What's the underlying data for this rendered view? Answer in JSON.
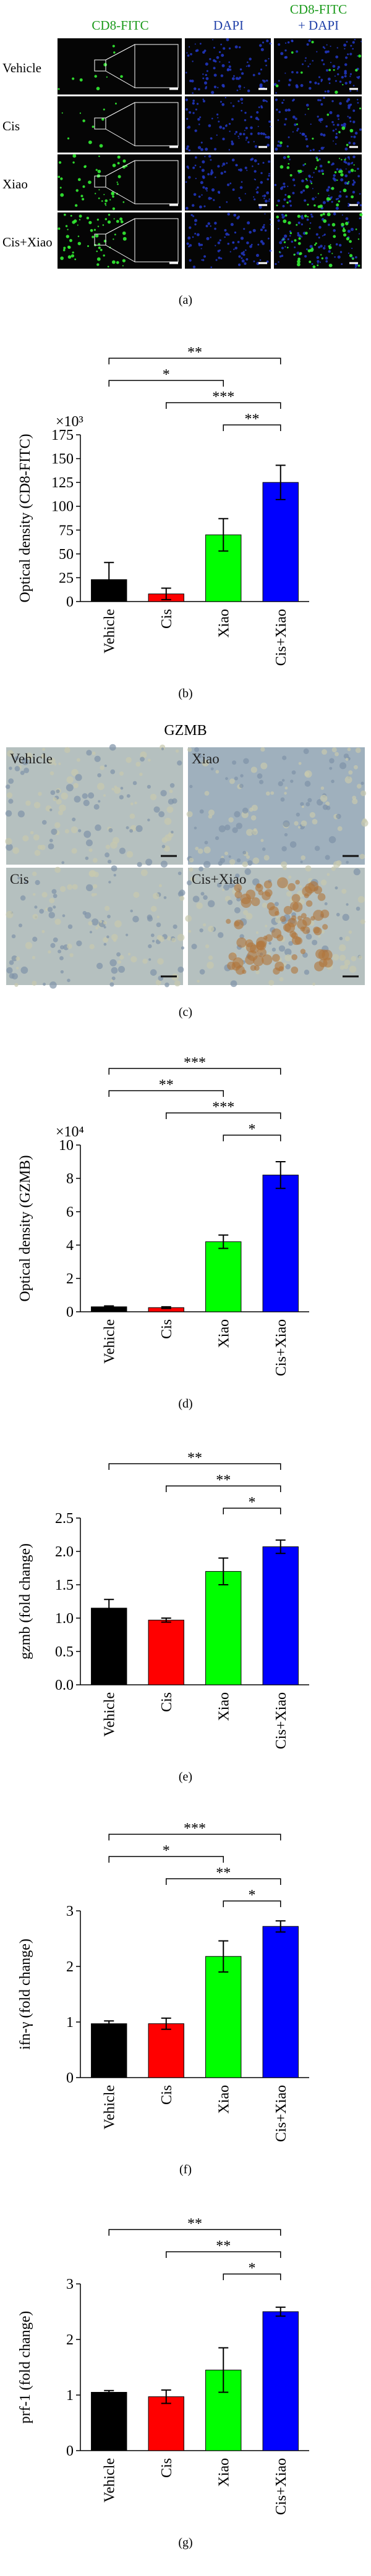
{
  "panel_a": {
    "columns": [
      [
        "CD8-FITC"
      ],
      [
        "DAPI"
      ],
      [
        "CD8-FITC",
        "+ DAPI"
      ]
    ],
    "rows": [
      "Vehicle",
      "Cis",
      "Xiao",
      "Cis+Xiao"
    ],
    "label": "(a)"
  },
  "panel_c": {
    "title": "GZMB",
    "images": [
      "Vehicle",
      "Xiao",
      "Cis",
      "Cis+Xiao"
    ],
    "label": "(c)"
  },
  "chart_data": [
    {
      "type": "bar",
      "panel_label": "(b)",
      "ylabel": "Optical density (CD8-FITC)",
      "y_multiplier": "×10³",
      "categories": [
        "Vehicle",
        "Cis",
        "Xiao",
        "Cis+Xiao"
      ],
      "values": [
        23,
        8,
        70,
        125
      ],
      "errors": [
        18,
        6,
        17,
        18
      ],
      "colors": [
        "#000000",
        "#ff0000",
        "#00ff00",
        "#0000ff"
      ],
      "ylim": [
        0,
        175
      ],
      "yticks": [
        0,
        25,
        50,
        75,
        100,
        125,
        150,
        175
      ],
      "brackets": [
        {
          "from": 2,
          "to": 3,
          "label": "**"
        },
        {
          "from": 1,
          "to": 3,
          "label": "***"
        },
        {
          "from": 0,
          "to": 2,
          "label": "*"
        },
        {
          "from": 0,
          "to": 3,
          "label": "**"
        }
      ]
    },
    {
      "type": "bar",
      "panel_label": "(d)",
      "ylabel": "Optical density (GZMB)",
      "y_multiplier": "×10⁴",
      "categories": [
        "Vehicle",
        "Cis",
        "Xiao",
        "Cis+Xiao"
      ],
      "values": [
        0.3,
        0.25,
        4.2,
        8.2
      ],
      "errors": [
        0.05,
        0.05,
        0.4,
        0.8
      ],
      "colors": [
        "#000000",
        "#ff0000",
        "#00ff00",
        "#0000ff"
      ],
      "ylim": [
        0,
        10
      ],
      "yticks": [
        0,
        2,
        4,
        6,
        8,
        10
      ],
      "brackets": [
        {
          "from": 2,
          "to": 3,
          "label": "*"
        },
        {
          "from": 1,
          "to": 3,
          "label": "***"
        },
        {
          "from": 0,
          "to": 2,
          "label": "**"
        },
        {
          "from": 0,
          "to": 3,
          "label": "***"
        }
      ]
    },
    {
      "type": "bar",
      "panel_label": "(e)",
      "ylabel": "gzmb (fold change)",
      "categories": [
        "Vehicle",
        "Cis",
        "Xiao",
        "Cis+Xiao"
      ],
      "values": [
        1.15,
        0.97,
        1.7,
        2.07
      ],
      "errors": [
        0.13,
        0.03,
        0.2,
        0.1
      ],
      "colors": [
        "#000000",
        "#ff0000",
        "#00ff00",
        "#0000ff"
      ],
      "ylim": [
        0,
        2.5
      ],
      "yticks": [
        {
          "value": 0,
          "label": "0.0"
        },
        {
          "value": 0.5,
          "label": "0.5"
        },
        {
          "value": 1,
          "label": "1.0"
        },
        {
          "value": 1.5,
          "label": "1.5"
        },
        {
          "value": 2,
          "label": "2.0"
        },
        {
          "value": 2.5,
          "label": "2.5"
        }
      ],
      "brackets": [
        {
          "from": 2,
          "to": 3,
          "label": "*"
        },
        {
          "from": 1,
          "to": 3,
          "label": "**"
        },
        {
          "from": 0,
          "to": 3,
          "label": "**"
        }
      ]
    },
    {
      "type": "bar",
      "panel_label": "(f)",
      "ylabel": "ifn-γ (fold change)",
      "categories": [
        "Vehicle",
        "Cis",
        "Xiao",
        "Cis+Xiao"
      ],
      "values": [
        0.97,
        0.97,
        2.18,
        2.72
      ],
      "errors": [
        0.05,
        0.1,
        0.28,
        0.1
      ],
      "colors": [
        "#000000",
        "#ff0000",
        "#00ff00",
        "#0000ff"
      ],
      "ylim": [
        0,
        3
      ],
      "yticks": [
        0,
        1,
        2,
        3
      ],
      "brackets": [
        {
          "from": 2,
          "to": 3,
          "label": "*"
        },
        {
          "from": 1,
          "to": 3,
          "label": "**"
        },
        {
          "from": 0,
          "to": 2,
          "label": "*"
        },
        {
          "from": 0,
          "to": 3,
          "label": "***"
        }
      ]
    },
    {
      "type": "bar",
      "panel_label": "(g)",
      "ylabel": "prf-1 (fold change)",
      "categories": [
        "Vehicle",
        "Cis",
        "Xiao",
        "Cis+Xiao"
      ],
      "values": [
        1.05,
        0.97,
        1.45,
        2.5
      ],
      "errors": [
        0.03,
        0.12,
        0.4,
        0.08
      ],
      "colors": [
        "#000000",
        "#ff0000",
        "#00ff00",
        "#0000ff"
      ],
      "ylim": [
        0,
        3
      ],
      "yticks": [
        0,
        1,
        2,
        3
      ],
      "brackets": [
        {
          "from": 2,
          "to": 3,
          "label": "*"
        },
        {
          "from": 1,
          "to": 3,
          "label": "**"
        },
        {
          "from": 0,
          "to": 3,
          "label": "**"
        }
      ]
    }
  ]
}
